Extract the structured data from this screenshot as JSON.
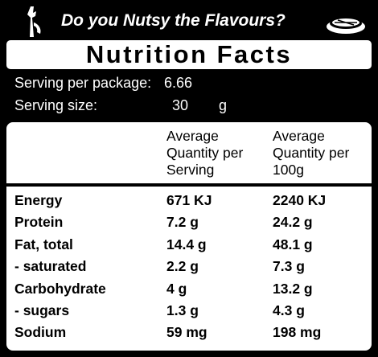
{
  "header": {
    "title": "Do you Nutsy the Flavours?"
  },
  "title": "Nutrition Facts",
  "serving_per_package": {
    "label": "Serving per package:",
    "value": "6.66"
  },
  "serving_size": {
    "label": "Serving size:",
    "value": "30",
    "unit": "g"
  },
  "table": {
    "columns": [
      "Average Quantity per Serving",
      "Average Quantity per 100g"
    ],
    "rows": [
      [
        "Energy",
        "671 KJ",
        "2240 KJ"
      ],
      [
        "Protein",
        "7.2 g",
        "24.2 g"
      ],
      [
        "Fat, total",
        "14.4 g",
        "48.1 g"
      ],
      [
        "- saturated",
        "2.2 g",
        "7.3 g"
      ],
      [
        "Carbohydrate",
        "4 g",
        "13.2 g"
      ],
      [
        "- sugars",
        "1.3 g",
        "4.3 g"
      ],
      [
        "Sodium",
        "59 mg",
        "198 mg"
      ]
    ]
  }
}
